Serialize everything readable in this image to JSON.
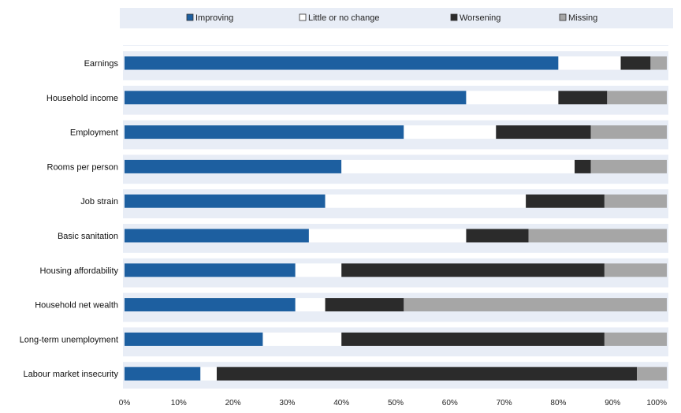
{
  "chart_data": {
    "type": "bar",
    "orientation": "horizontal",
    "stacked": true,
    "categories": [
      "Earnings",
      "Household income",
      "Employment",
      "Rooms per person",
      "Job strain",
      "Basic sanitation",
      "Housing affordability",
      "Household net wealth",
      "Long-term unemployment",
      "Labour market insecurity"
    ],
    "series": [
      {
        "name": "Improving",
        "color": "#1d5fa0",
        "values": [
          80,
          63,
          51.5,
          40,
          37,
          34,
          31.5,
          31.5,
          25.5,
          14
        ]
      },
      {
        "name": "Little or no change",
        "color": "#ffffff",
        "values": [
          11.5,
          17,
          17,
          43,
          37,
          29,
          8.5,
          5.5,
          14.5,
          3
        ]
      },
      {
        "name": "Worsening",
        "color": "#2b2b2b",
        "values": [
          5.5,
          9,
          17.5,
          3,
          14.5,
          11.5,
          48.5,
          14.5,
          48.5,
          77.5
        ]
      },
      {
        "name": "Missing",
        "color": "#a6a6a6",
        "values": [
          3,
          11,
          14,
          14,
          11.5,
          25.5,
          11.5,
          48.5,
          11.5,
          5.5
        ]
      }
    ],
    "xlim": [
      0,
      100
    ],
    "xticks": [
      "0%",
      "10%",
      "20%",
      "30%",
      "40%",
      "50%",
      "60%",
      "70%",
      "80%",
      "90%",
      "100%"
    ],
    "legend_position": "top",
    "grid": false,
    "plot_background": "#e8edf6",
    "title": "",
    "xlabel": "",
    "ylabel": ""
  }
}
